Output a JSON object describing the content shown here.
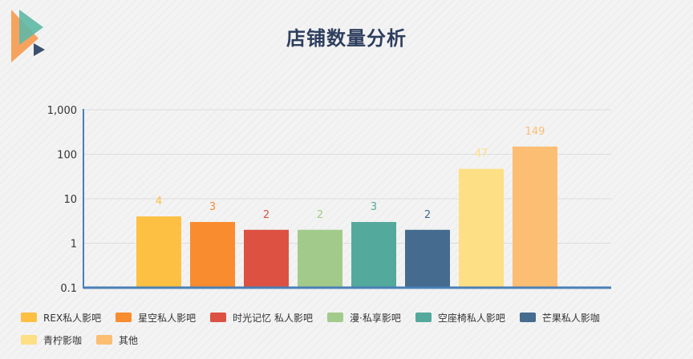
{
  "chart_data": {
    "type": "bar",
    "title": "店铺数量分析",
    "y_scale": "log",
    "ylim": [
      0.1,
      1000
    ],
    "y_ticks": [
      "0.1",
      "1",
      "10",
      "100",
      "1,000"
    ],
    "y_tick_values": [
      0.1,
      1,
      10,
      100,
      1000
    ],
    "grid": true,
    "legend_position": "bottom",
    "series": [
      {
        "name": "REX私人影吧",
        "value": 4,
        "label": "4",
        "color": "#fdc042"
      },
      {
        "name": "星空私人影吧",
        "value": 3,
        "label": "3",
        "color": "#f88c2f"
      },
      {
        "name": "时光记忆 私人影吧",
        "value": 2,
        "label": "2",
        "color": "#dc5142"
      },
      {
        "name": "漫·私享影吧",
        "value": 2,
        "label": "2",
        "color": "#a2cb8b"
      },
      {
        "name": "空座椅私人影吧",
        "value": 3,
        "label": "3",
        "color": "#53a99c"
      },
      {
        "name": "芒果私人影咖",
        "value": 2,
        "label": "2",
        "color": "#456b8e"
      },
      {
        "name": "青柠影咖",
        "value": 47,
        "label": "47",
        "color": "#fddf85"
      },
      {
        "name": "其他",
        "value": 149,
        "label": "149",
        "color": "#fcbe73"
      }
    ]
  }
}
